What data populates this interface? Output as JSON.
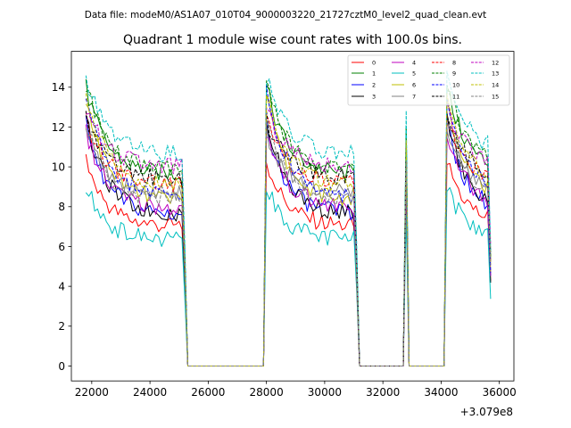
{
  "figure": {
    "suptitle": "Data file: modeM0/AS1A07_010T04_9000003220_21727cztM0_level2_quad_clean.evt"
  },
  "chart_data": {
    "type": "line",
    "title": "Quadrant 1 module wise count rates with 100.0s bins.",
    "xlabel": "",
    "ylabel": "",
    "x_offset_label": "+3.079e8",
    "xlim": [
      21300,
      36500
    ],
    "ylim": [
      -0.75,
      15.8
    ],
    "xticks": [
      22000,
      24000,
      26000,
      28000,
      30000,
      32000,
      34000,
      36000
    ],
    "xtick_labels": [
      "22000",
      "24000",
      "26000",
      "28000",
      "30000",
      "32000",
      "34000",
      "36000"
    ],
    "yticks": [
      0,
      2,
      4,
      6,
      8,
      10,
      12,
      14
    ],
    "ytick_labels": [
      "0",
      "2",
      "4",
      "6",
      "8",
      "10",
      "12",
      "14"
    ],
    "legend_position": "upper right",
    "bin_seconds": 100.0,
    "segments": [
      {
        "start": 21800,
        "end": 25300,
        "on": true
      },
      {
        "start": 25300,
        "end": 28000,
        "on": false
      },
      {
        "start": 28000,
        "end": 31200,
        "on": true
      },
      {
        "start": 31200,
        "end": 32800,
        "on": false
      },
      {
        "start": 32800,
        "end": 32900,
        "on": true
      },
      {
        "start": 32900,
        "end": 34200,
        "on": false
      },
      {
        "start": 34200,
        "end": 35800,
        "on": true
      }
    ],
    "series": [
      {
        "name": "0",
        "color": "#ff0000",
        "dash": "solid",
        "start_level": 10.3,
        "level": 7.0
      },
      {
        "name": "1",
        "color": "#008000",
        "dash": "solid",
        "start_level": 14.0,
        "level": 9.6
      },
      {
        "name": "2",
        "color": "#0000ff",
        "dash": "solid",
        "start_level": 12.1,
        "level": 7.6
      },
      {
        "name": "3",
        "color": "#000000",
        "dash": "solid",
        "start_level": 12.4,
        "level": 7.6
      },
      {
        "name": "4",
        "color": "#bf00bf",
        "dash": "solid",
        "start_level": 11.8,
        "level": 7.9
      },
      {
        "name": "5",
        "color": "#00bfbf",
        "dash": "solid",
        "start_level": 9.0,
        "level": 6.3
      },
      {
        "name": "6",
        "color": "#bfbf00",
        "dash": "solid",
        "start_level": 13.5,
        "level": 8.3
      },
      {
        "name": "7",
        "color": "#808080",
        "dash": "solid",
        "start_level": 11.8,
        "level": 8.6
      },
      {
        "name": "8",
        "color": "#ff0000",
        "dash": "dashed",
        "start_level": 12.4,
        "level": 9.1
      },
      {
        "name": "9",
        "color": "#008000",
        "dash": "dashed",
        "start_level": 14.2,
        "level": 9.8
      },
      {
        "name": "10",
        "color": "#0000ff",
        "dash": "dashed",
        "start_level": 13.7,
        "level": 8.5
      },
      {
        "name": "11",
        "color": "#000000",
        "dash": "dashed",
        "start_level": 12.4,
        "level": 9.4
      },
      {
        "name": "12",
        "color": "#bf00bf",
        "dash": "dashed",
        "start_level": 13.0,
        "level": 10.0
      },
      {
        "name": "13",
        "color": "#00bfbf",
        "dash": "dashed",
        "start_level": 14.5,
        "level": 10.6
      },
      {
        "name": "14",
        "color": "#bfbf00",
        "dash": "dashed",
        "start_level": 13.8,
        "level": 9.0
      },
      {
        "name": "15",
        "color": "#808080",
        "dash": "dashed",
        "start_level": 12.3,
        "level": 8.3
      }
    ]
  }
}
